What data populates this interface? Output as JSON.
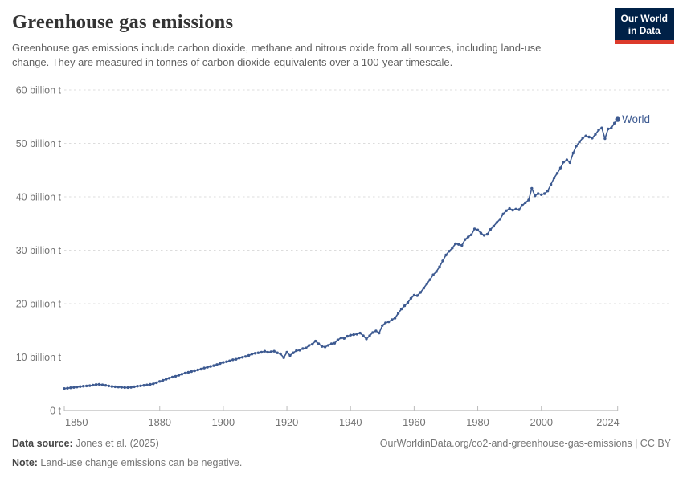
{
  "header": {
    "title": "Greenhouse gas emissions",
    "subtitle": "Greenhouse gas emissions include carbon dioxide, methane and nitrous oxide from all sources, including land-use change. They are measured in tonnes of carbon dioxide-equivalents over a 100-year timescale.",
    "logo": {
      "line1": "Our World",
      "line2": "in Data",
      "bg_color": "#002147",
      "bar_color": "#dc3a2b"
    }
  },
  "chart_data": {
    "type": "line",
    "title": "Greenhouse gas emissions",
    "xlabel": "",
    "ylabel": "",
    "xlim": [
      1850,
      2024
    ],
    "ylim": [
      0,
      60
    ],
    "grid": "horizontal-dashed",
    "legend_position": "end-of-line-label",
    "end_label": "World",
    "x_ticks": [
      1850,
      1880,
      1900,
      1920,
      1940,
      1960,
      1980,
      2000,
      2024
    ],
    "y_ticks": [
      {
        "value": 0,
        "label": "0 t"
      },
      {
        "value": 10,
        "label": "10 billion t"
      },
      {
        "value": 20,
        "label": "20 billion t"
      },
      {
        "value": 30,
        "label": "30 billion t"
      },
      {
        "value": 40,
        "label": "40 billion t"
      },
      {
        "value": 50,
        "label": "50 billion t"
      },
      {
        "value": 60,
        "label": "60 billion t"
      }
    ],
    "unit": "billion tonnes CO2-equivalents",
    "series": [
      {
        "name": "World",
        "color": "#3d5a91",
        "x": [
          1850,
          1851,
          1852,
          1853,
          1854,
          1855,
          1856,
          1857,
          1858,
          1859,
          1860,
          1861,
          1862,
          1863,
          1864,
          1865,
          1866,
          1867,
          1868,
          1869,
          1870,
          1871,
          1872,
          1873,
          1874,
          1875,
          1876,
          1877,
          1878,
          1879,
          1880,
          1881,
          1882,
          1883,
          1884,
          1885,
          1886,
          1887,
          1888,
          1889,
          1890,
          1891,
          1892,
          1893,
          1894,
          1895,
          1896,
          1897,
          1898,
          1899,
          1900,
          1901,
          1902,
          1903,
          1904,
          1905,
          1906,
          1907,
          1908,
          1909,
          1910,
          1911,
          1912,
          1913,
          1914,
          1915,
          1916,
          1917,
          1918,
          1919,
          1920,
          1921,
          1922,
          1923,
          1924,
          1925,
          1926,
          1927,
          1928,
          1929,
          1930,
          1931,
          1932,
          1933,
          1934,
          1935,
          1936,
          1937,
          1938,
          1939,
          1940,
          1941,
          1942,
          1943,
          1944,
          1945,
          1946,
          1947,
          1948,
          1949,
          1950,
          1951,
          1952,
          1953,
          1954,
          1955,
          1956,
          1957,
          1958,
          1959,
          1960,
          1961,
          1962,
          1963,
          1964,
          1965,
          1966,
          1967,
          1968,
          1969,
          1970,
          1971,
          1972,
          1973,
          1974,
          1975,
          1976,
          1977,
          1978,
          1979,
          1980,
          1981,
          1982,
          1983,
          1984,
          1985,
          1986,
          1987,
          1988,
          1989,
          1990,
          1991,
          1992,
          1993,
          1994,
          1995,
          1996,
          1997,
          1998,
          1999,
          2000,
          2001,
          2002,
          2003,
          2004,
          2005,
          2006,
          2007,
          2008,
          2009,
          2010,
          2011,
          2012,
          2013,
          2014,
          2015,
          2016,
          2017,
          2018,
          2019,
          2020,
          2021,
          2022,
          2023,
          2024
        ],
        "values": [
          4.1,
          4.18,
          4.25,
          4.33,
          4.4,
          4.48,
          4.55,
          4.6,
          4.65,
          4.75,
          4.85,
          4.9,
          4.8,
          4.7,
          4.6,
          4.5,
          4.45,
          4.4,
          4.35,
          4.3,
          4.3,
          4.35,
          4.45,
          4.55,
          4.62,
          4.7,
          4.78,
          4.88,
          5.0,
          5.2,
          5.45,
          5.65,
          5.85,
          6.05,
          6.25,
          6.4,
          6.6,
          6.8,
          7.0,
          7.15,
          7.3,
          7.45,
          7.6,
          7.75,
          7.95,
          8.1,
          8.25,
          8.4,
          8.6,
          8.8,
          9.0,
          9.15,
          9.3,
          9.5,
          9.6,
          9.8,
          9.95,
          10.1,
          10.3,
          10.55,
          10.7,
          10.8,
          10.9,
          11.1,
          10.9,
          11.0,
          11.1,
          10.8,
          10.6,
          9.9,
          10.9,
          10.3,
          10.8,
          11.2,
          11.3,
          11.6,
          11.7,
          12.2,
          12.4,
          13.0,
          12.5,
          12.0,
          11.9,
          12.2,
          12.5,
          12.6,
          13.2,
          13.6,
          13.5,
          13.9,
          14.1,
          14.2,
          14.3,
          14.5,
          14.0,
          13.4,
          14.0,
          14.6,
          14.9,
          14.5,
          15.9,
          16.4,
          16.6,
          17.0,
          17.3,
          18.2,
          19.0,
          19.6,
          20.2,
          21.0,
          21.6,
          21.5,
          22.1,
          22.9,
          23.7,
          24.5,
          25.4,
          26.0,
          26.9,
          28.0,
          29.1,
          29.8,
          30.4,
          31.2,
          31.1,
          30.9,
          32.0,
          32.5,
          32.9,
          34.0,
          33.8,
          33.2,
          32.8,
          33.0,
          33.9,
          34.5,
          35.2,
          35.8,
          36.8,
          37.4,
          37.8,
          37.5,
          37.7,
          37.6,
          38.4,
          38.9,
          39.4,
          41.6,
          40.2,
          40.6,
          40.4,
          40.6,
          41.1,
          42.3,
          43.5,
          44.4,
          45.4,
          46.5,
          46.9,
          46.4,
          48.2,
          49.5,
          50.3,
          51.0,
          51.4,
          51.2,
          51.0,
          51.7,
          52.5,
          52.9,
          50.9,
          52.7,
          52.9,
          53.8,
          54.5
        ]
      }
    ]
  },
  "footer": {
    "source_label": "Data source:",
    "source_value": " Jones et al. (2025)",
    "note_label": "Note:",
    "note_value": " Land-use change emissions can be negative.",
    "link": "OurWorldinData.org/co2-and-greenhouse-gas-emissions | CC BY"
  }
}
